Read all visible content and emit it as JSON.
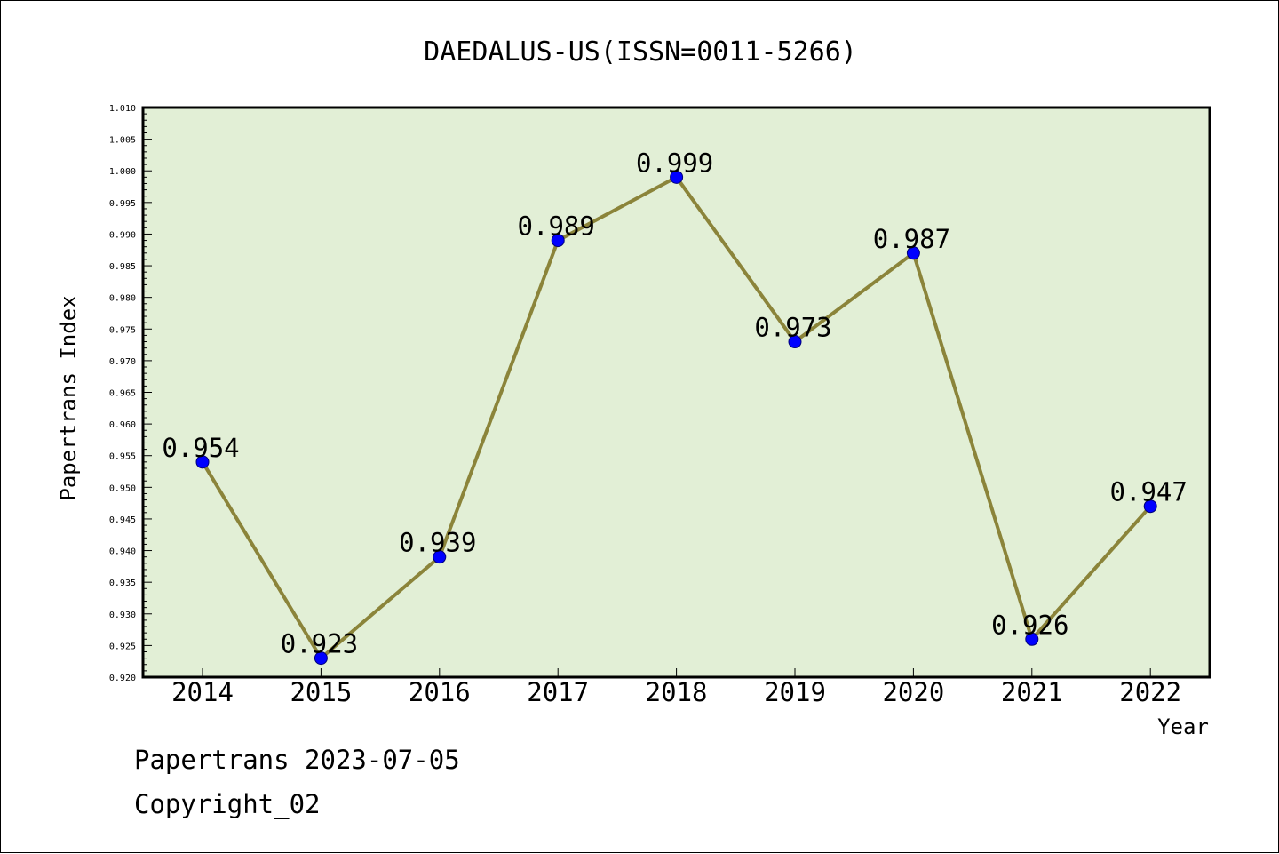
{
  "chart_data": {
    "type": "line",
    "title": "DAEDALUS-US(ISSN=0011-5266)",
    "xlabel": "Year",
    "ylabel": "Papertrans Index",
    "categories": [
      "2014",
      "2015",
      "2016",
      "2017",
      "2018",
      "2019",
      "2020",
      "2021",
      "2022"
    ],
    "series": [
      {
        "values": [
          0.954,
          0.923,
          0.939,
          0.989,
          0.999,
          0.973,
          0.987,
          0.926,
          0.947
        ],
        "data_labels": [
          "0.954",
          "0.923",
          "0.939",
          "0.989",
          "0.999",
          "0.973",
          "0.987",
          "0.926",
          "0.947"
        ]
      }
    ],
    "ylim": [
      0.92,
      1.01
    ],
    "ytick_labels": [
      "0.920",
      "0.925",
      "0.930",
      "0.935",
      "0.940",
      "0.945",
      "0.950",
      "0.955",
      "0.960",
      "0.965",
      "0.970",
      "0.975",
      "0.980",
      "0.985",
      "0.990",
      "0.995",
      "1.000",
      "1.005",
      "1.010"
    ],
    "grid": false,
    "legend": "none",
    "colors": {
      "plot_background": "#e2efd6",
      "line": "#8b843a",
      "marker": "#0000ff"
    }
  },
  "footer": {
    "line1": "Papertrans 2023-07-05",
    "line2": "Copyright_02"
  }
}
